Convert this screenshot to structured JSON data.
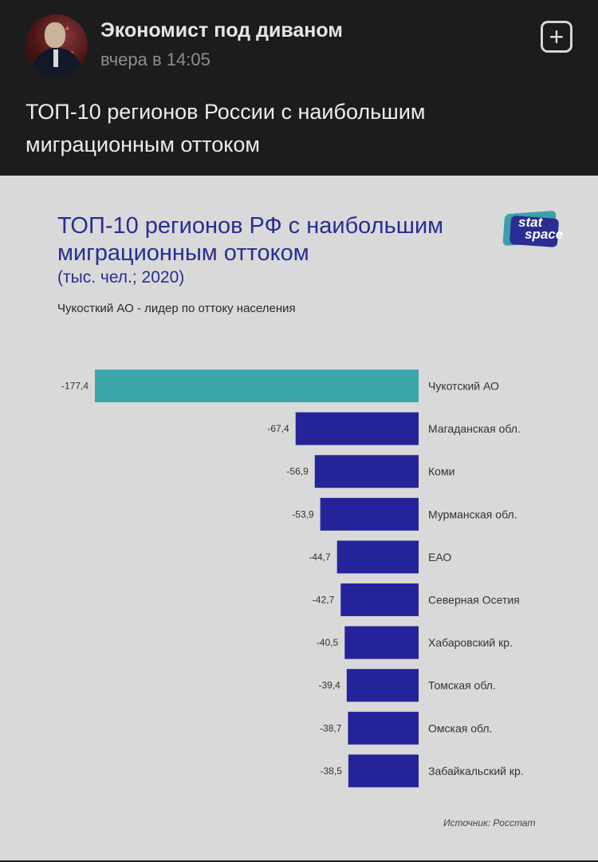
{
  "post": {
    "channel_name": "Экономист под диваном",
    "time": "вчера в 14:05",
    "text": "ТОП-10 регионов России с наибольшим миграционным оттоком",
    "add_icon": "plus-square-icon"
  },
  "card": {
    "title": "ТОП-10 регионов РФ с наибольшим миграционным оттоком",
    "subtitle": "(тыс. чел.; 2020)",
    "note": "Чукосткий АО - лидер по оттоку населения",
    "source": "Источник: Росстат",
    "logo_line1": "stat",
    "logo_line2": "space"
  },
  "chart_data": {
    "type": "bar",
    "orientation": "horizontal",
    "categories": [
      "Чукотский АО",
      "Магаданская обл.",
      "Коми",
      "Мурманская обл.",
      "ЕАО",
      "Северная Осетия",
      "Хабаровский кр.",
      "Томская обл.",
      "Омская обл.",
      "Забайкальский кр."
    ],
    "values": [
      -177.4,
      -67.4,
      -56.9,
      -53.9,
      -44.7,
      -42.7,
      -40.5,
      -39.4,
      -38.7,
      -38.5
    ],
    "value_labels": [
      "-177,4",
      "-67,4",
      "-56,9",
      "-53,9",
      "-44,7",
      "-42,7",
      "-40,5",
      "-39,4",
      "-38,7",
      "-38,5"
    ],
    "colors": [
      "#3aa7ab",
      "#25239a",
      "#25239a",
      "#25239a",
      "#25239a",
      "#25239a",
      "#25239a",
      "#25239a",
      "#25239a",
      "#25239a"
    ],
    "xlim": [
      -177.4,
      0
    ],
    "grid": false,
    "legend": "none"
  }
}
